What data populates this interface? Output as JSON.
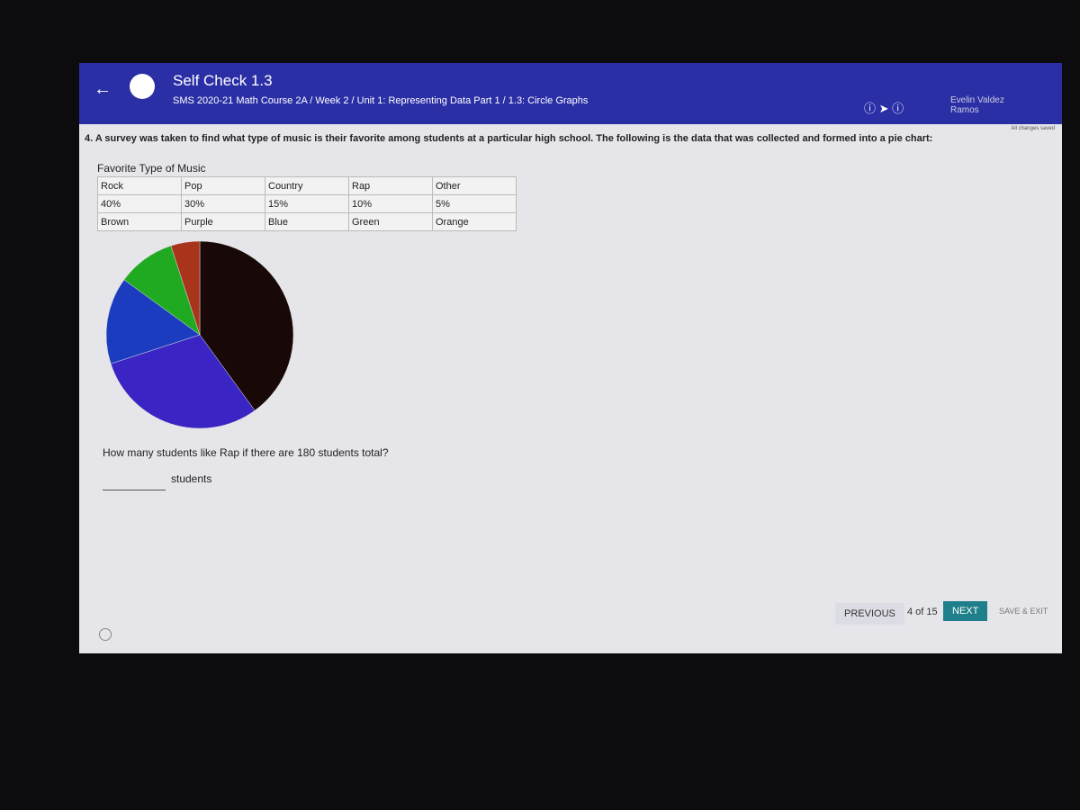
{
  "header": {
    "title": "Self Check 1.3",
    "breadcrumb": "SMS 2020-21 Math Course 2A / Week 2 / Unit 1: Representing Data Part 1 / 1.3: Circle Graphs",
    "user": "Evelin Valdez Ramos"
  },
  "status": "All changes saved",
  "question": {
    "text": "4. A survey was taken to find what type of music is their favorite among students at a particular high school. The following is the data that was collected and formed into a pie chart:",
    "table_caption": "Favorite Type of Music",
    "table": {
      "rows": [
        [
          "Rock",
          "Pop",
          "Country",
          "Rap",
          "Other"
        ],
        [
          "40%",
          "30%",
          "15%",
          "10%",
          "5%"
        ],
        [
          "Brown",
          "Purple",
          "Blue",
          "Green",
          "Orange"
        ]
      ]
    },
    "pie": {
      "values": [
        40,
        30,
        15,
        10,
        5
      ],
      "colors": [
        "#180808",
        "#3a24c4",
        "#1c3cc0",
        "#1faa22",
        "#a8341c"
      ]
    },
    "prompt": "How many students like Rap if there are 180 students total?",
    "unit": "students"
  },
  "footer": {
    "previous": "PREVIOUS",
    "position": "4 of 15",
    "next": "NEXT",
    "save": "SAVE & EXIT"
  }
}
